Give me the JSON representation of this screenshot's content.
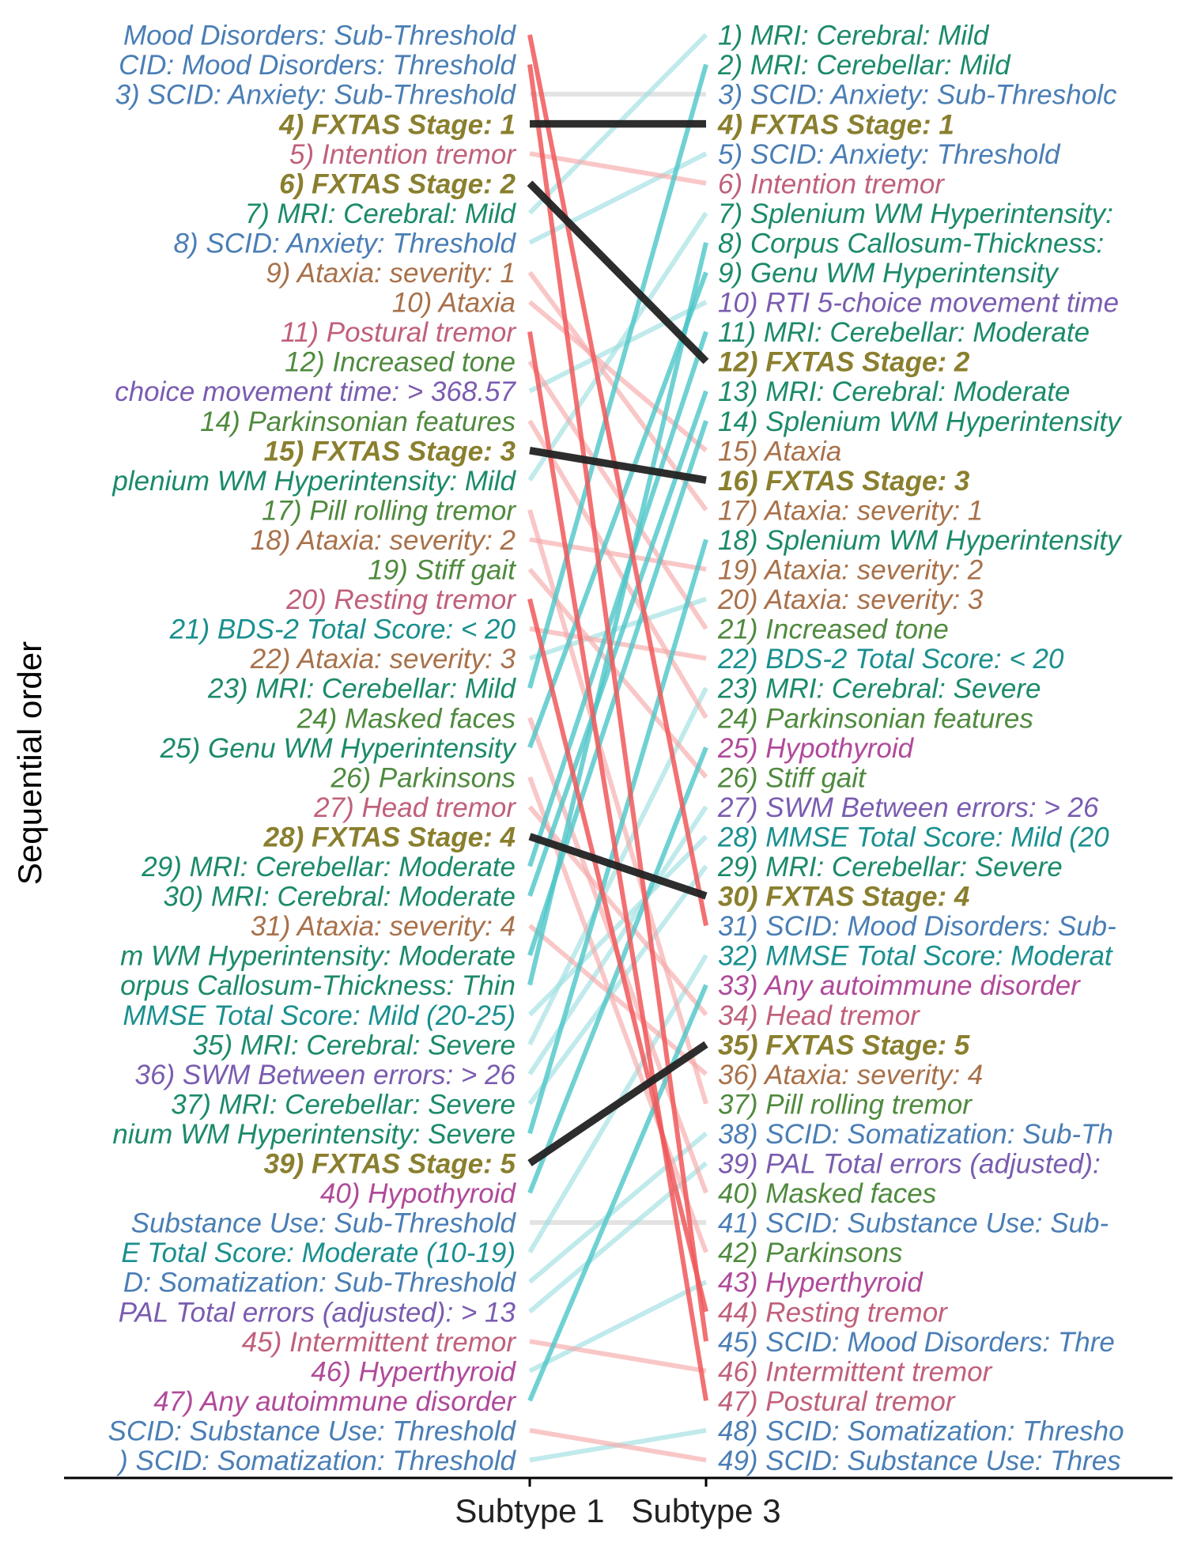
{
  "chart_data": {
    "type": "slope",
    "ylabel": "Sequential order",
    "categories": [
      "Subtype 1",
      "Subtype 3"
    ],
    "colors": {
      "group": {
        "mri": "#1b8a6b",
        "scid": "#4a7eb5",
        "stage": "#8a7f2e",
        "tremor": "#c0607a",
        "ataxia": "#a8714a",
        "motor": "#4f8a3e",
        "cognitive": "#7a5cb0",
        "score": "#1a8f8f",
        "thyroid": "#b04a9a"
      },
      "line": {
        "red": "#f0585a",
        "pink": "#f6a9a9",
        "teal": "#4cc6c8",
        "lightteal": "#9edfe0",
        "gray": "#dcdcdc",
        "black": "#222222"
      }
    },
    "left_labels": [
      {
        "text": "Mood Disorders: Sub-Threshold",
        "g": "scid"
      },
      {
        "text": "CID: Mood Disorders: Threshold",
        "g": "scid"
      },
      {
        "text": "3) SCID: Anxiety: Sub-Threshold",
        "g": "scid"
      },
      {
        "text": "4) FXTAS Stage: 1",
        "g": "stage"
      },
      {
        "text": "5) Intention tremor",
        "g": "tremor"
      },
      {
        "text": "6) FXTAS Stage: 2",
        "g": "stage"
      },
      {
        "text": "7) MRI: Cerebral: Mild",
        "g": "mri"
      },
      {
        "text": "8) SCID: Anxiety: Threshold",
        "g": "scid"
      },
      {
        "text": "9) Ataxia: severity: 1",
        "g": "ataxia"
      },
      {
        "text": "10) Ataxia",
        "g": "ataxia"
      },
      {
        "text": "11) Postural tremor",
        "g": "tremor"
      },
      {
        "text": "12) Increased tone",
        "g": "motor"
      },
      {
        "text": "choice movement time: > 368.57",
        "g": "cognitive"
      },
      {
        "text": "14) Parkinsonian features",
        "g": "motor"
      },
      {
        "text": "15) FXTAS Stage: 3",
        "g": "stage"
      },
      {
        "text": "plenium WM Hyperintensity: Mild",
        "g": "mri"
      },
      {
        "text": "17) Pill rolling tremor",
        "g": "motor"
      },
      {
        "text": "18) Ataxia: severity: 2",
        "g": "ataxia"
      },
      {
        "text": "19) Stiff gait",
        "g": "motor"
      },
      {
        "text": "20) Resting tremor",
        "g": "tremor"
      },
      {
        "text": "21) BDS-2 Total Score: < 20",
        "g": "score"
      },
      {
        "text": "22) Ataxia: severity: 3",
        "g": "ataxia"
      },
      {
        "text": "23) MRI: Cerebellar: Mild",
        "g": "mri"
      },
      {
        "text": "24) Masked faces",
        "g": "motor"
      },
      {
        "text": "25) Genu WM Hyperintensity",
        "g": "mri"
      },
      {
        "text": "26) Parkinsons",
        "g": "motor"
      },
      {
        "text": "27) Head tremor",
        "g": "tremor"
      },
      {
        "text": "28) FXTAS Stage: 4",
        "g": "stage"
      },
      {
        "text": "29) MRI: Cerebellar: Moderate",
        "g": "mri"
      },
      {
        "text": "30) MRI: Cerebral: Moderate",
        "g": "mri"
      },
      {
        "text": "31) Ataxia: severity: 4",
        "g": "ataxia"
      },
      {
        "text": "m WM Hyperintensity: Moderate",
        "g": "mri"
      },
      {
        "text": "orpus Callosum-Thickness: Thin",
        "g": "mri"
      },
      {
        "text": "MMSE Total Score: Mild (20-25)",
        "g": "score"
      },
      {
        "text": "35) MRI: Cerebral: Severe",
        "g": "mri"
      },
      {
        "text": "36) SWM Between errors: > 26",
        "g": "cognitive"
      },
      {
        "text": "37) MRI: Cerebellar: Severe",
        "g": "mri"
      },
      {
        "text": "nium WM Hyperintensity: Severe",
        "g": "mri"
      },
      {
        "text": "39) FXTAS Stage: 5",
        "g": "stage"
      },
      {
        "text": "40) Hypothyroid",
        "g": "thyroid"
      },
      {
        "text": "Substance Use: Sub-Threshold",
        "g": "scid"
      },
      {
        "text": "E Total Score: Moderate (10-19)",
        "g": "score"
      },
      {
        "text": "D: Somatization: Sub-Threshold",
        "g": "scid"
      },
      {
        "text": "PAL Total errors (adjusted): > 13",
        "g": "cognitive"
      },
      {
        "text": "45) Intermittent tremor",
        "g": "tremor"
      },
      {
        "text": "46) Hyperthyroid",
        "g": "thyroid"
      },
      {
        "text": "47) Any autoimmune disorder",
        "g": "thyroid"
      },
      {
        "text": "SCID: Substance Use: Threshold",
        "g": "scid"
      },
      {
        "text": ") SCID: Somatization: Threshold",
        "g": "scid"
      }
    ],
    "right_labels": [
      {
        "text": "1) MRI: Cerebral: Mild",
        "g": "mri"
      },
      {
        "text": "2) MRI: Cerebellar: Mild",
        "g": "mri"
      },
      {
        "text": "3) SCID: Anxiety: Sub-Thresholc",
        "g": "scid"
      },
      {
        "text": "4) FXTAS Stage: 1",
        "g": "stage"
      },
      {
        "text": "5) SCID: Anxiety: Threshold",
        "g": "scid"
      },
      {
        "text": "6) Intention tremor",
        "g": "tremor"
      },
      {
        "text": "7) Splenium WM Hyperintensity:",
        "g": "mri"
      },
      {
        "text": "8) Corpus Callosum-Thickness:",
        "g": "mri"
      },
      {
        "text": "9) Genu WM Hyperintensity",
        "g": "mri"
      },
      {
        "text": "10) RTI 5-choice movement time",
        "g": "cognitive"
      },
      {
        "text": "11) MRI: Cerebellar: Moderate",
        "g": "mri"
      },
      {
        "text": "12) FXTAS Stage: 2",
        "g": "stage"
      },
      {
        "text": "13) MRI: Cerebral: Moderate",
        "g": "mri"
      },
      {
        "text": "14) Splenium WM Hyperintensity",
        "g": "mri"
      },
      {
        "text": "15) Ataxia",
        "g": "ataxia"
      },
      {
        "text": "16) FXTAS Stage: 3",
        "g": "stage"
      },
      {
        "text": "17) Ataxia: severity: 1",
        "g": "ataxia"
      },
      {
        "text": "18) Splenium WM Hyperintensity",
        "g": "mri"
      },
      {
        "text": "19) Ataxia: severity: 2",
        "g": "ataxia"
      },
      {
        "text": "20) Ataxia: severity: 3",
        "g": "ataxia"
      },
      {
        "text": "21) Increased tone",
        "g": "motor"
      },
      {
        "text": "22) BDS-2 Total Score: < 20",
        "g": "score"
      },
      {
        "text": "23) MRI: Cerebral: Severe",
        "g": "mri"
      },
      {
        "text": "24) Parkinsonian features",
        "g": "motor"
      },
      {
        "text": "25) Hypothyroid",
        "g": "thyroid"
      },
      {
        "text": "26) Stiff gait",
        "g": "motor"
      },
      {
        "text": "27) SWM Between errors: > 26",
        "g": "cognitive"
      },
      {
        "text": "28) MMSE Total Score: Mild (20",
        "g": "score"
      },
      {
        "text": "29) MRI: Cerebellar: Severe",
        "g": "mri"
      },
      {
        "text": "30) FXTAS Stage: 4",
        "g": "stage"
      },
      {
        "text": "31) SCID: Mood Disorders: Sub-",
        "g": "scid"
      },
      {
        "text": "32) MMSE Total Score: Moderat",
        "g": "score"
      },
      {
        "text": "33) Any autoimmune disorder",
        "g": "thyroid"
      },
      {
        "text": "34) Head tremor",
        "g": "tremor"
      },
      {
        "text": "35) FXTAS Stage: 5",
        "g": "stage"
      },
      {
        "text": "36) Ataxia: severity: 4",
        "g": "ataxia"
      },
      {
        "text": "37) Pill rolling tremor",
        "g": "motor"
      },
      {
        "text": "38) SCID: Somatization: Sub-Th",
        "g": "scid"
      },
      {
        "text": "39) PAL Total errors (adjusted):",
        "g": "cognitive"
      },
      {
        "text": "40) Masked faces",
        "g": "motor"
      },
      {
        "text": "41) SCID: Substance Use: Sub-",
        "g": "scid"
      },
      {
        "text": "42) Parkinsons",
        "g": "motor"
      },
      {
        "text": "43) Hyperthyroid",
        "g": "thyroid"
      },
      {
        "text": "44) Resting tremor",
        "g": "tremor"
      },
      {
        "text": "45) SCID: Mood Disorders: Thre",
        "g": "scid"
      },
      {
        "text": "46) Intermittent tremor",
        "g": "tremor"
      },
      {
        "text": "47) Postural tremor",
        "g": "tremor"
      },
      {
        "text": "48) SCID: Somatization: Thresho",
        "g": "scid"
      },
      {
        "text": "49) SCID: Substance Use: Thres",
        "g": "scid"
      }
    ],
    "connections": [
      {
        "from": 1,
        "to": 31,
        "c": "red"
      },
      {
        "from": 2,
        "to": 45,
        "c": "red"
      },
      {
        "from": 3,
        "to": 3,
        "c": "gray"
      },
      {
        "from": 4,
        "to": 4,
        "c": "black"
      },
      {
        "from": 5,
        "to": 6,
        "c": "pink"
      },
      {
        "from": 6,
        "to": 12,
        "c": "black"
      },
      {
        "from": 7,
        "to": 1,
        "c": "lightteal"
      },
      {
        "from": 8,
        "to": 5,
        "c": "lightteal"
      },
      {
        "from": 9,
        "to": 17,
        "c": "pink"
      },
      {
        "from": 10,
        "to": 15,
        "c": "pink"
      },
      {
        "from": 11,
        "to": 47,
        "c": "red"
      },
      {
        "from": 12,
        "to": 21,
        "c": "pink"
      },
      {
        "from": 13,
        "to": 10,
        "c": "lightteal"
      },
      {
        "from": 14,
        "to": 24,
        "c": "pink"
      },
      {
        "from": 15,
        "to": 16,
        "c": "black"
      },
      {
        "from": 16,
        "to": 7,
        "c": "lightteal"
      },
      {
        "from": 17,
        "to": 37,
        "c": "pink"
      },
      {
        "from": 18,
        "to": 19,
        "c": "pink"
      },
      {
        "from": 19,
        "to": 26,
        "c": "pink"
      },
      {
        "from": 20,
        "to": 44,
        "c": "red"
      },
      {
        "from": 21,
        "to": 22,
        "c": "pink"
      },
      {
        "from": 22,
        "to": 20,
        "c": "lightteal"
      },
      {
        "from": 23,
        "to": 2,
        "c": "teal"
      },
      {
        "from": 24,
        "to": 40,
        "c": "pink"
      },
      {
        "from": 25,
        "to": 9,
        "c": "teal"
      },
      {
        "from": 26,
        "to": 42,
        "c": "pink"
      },
      {
        "from": 27,
        "to": 34,
        "c": "pink"
      },
      {
        "from": 28,
        "to": 30,
        "c": "black"
      },
      {
        "from": 29,
        "to": 11,
        "c": "teal"
      },
      {
        "from": 30,
        "to": 13,
        "c": "teal"
      },
      {
        "from": 31,
        "to": 36,
        "c": "pink"
      },
      {
        "from": 32,
        "to": 14,
        "c": "teal"
      },
      {
        "from": 33,
        "to": 8,
        "c": "teal"
      },
      {
        "from": 34,
        "to": 28,
        "c": "lightteal"
      },
      {
        "from": 35,
        "to": 23,
        "c": "lightteal"
      },
      {
        "from": 36,
        "to": 27,
        "c": "lightteal"
      },
      {
        "from": 37,
        "to": 29,
        "c": "lightteal"
      },
      {
        "from": 38,
        "to": 18,
        "c": "teal"
      },
      {
        "from": 39,
        "to": 35,
        "c": "black"
      },
      {
        "from": 40,
        "to": 25,
        "c": "teal"
      },
      {
        "from": 41,
        "to": 41,
        "c": "gray"
      },
      {
        "from": 42,
        "to": 32,
        "c": "lightteal"
      },
      {
        "from": 43,
        "to": 38,
        "c": "lightteal"
      },
      {
        "from": 44,
        "to": 39,
        "c": "lightteal"
      },
      {
        "from": 45,
        "to": 46,
        "c": "pink"
      },
      {
        "from": 46,
        "to": 43,
        "c": "lightteal"
      },
      {
        "from": 47,
        "to": 33,
        "c": "teal"
      },
      {
        "from": 48,
        "to": 49,
        "c": "pink"
      },
      {
        "from": 49,
        "to": 48,
        "c": "lightteal"
      }
    ]
  }
}
